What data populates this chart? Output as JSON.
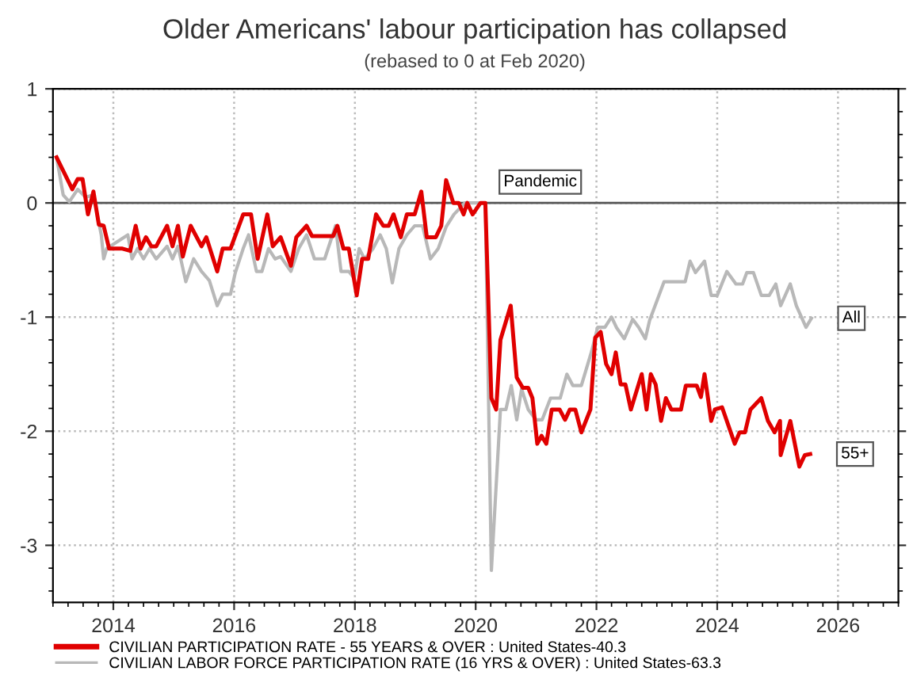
{
  "chart_data": {
    "type": "line",
    "title": "Older Americans' labour participation has collapsed",
    "subtitle": "(rebased to 0 at Feb 2020)",
    "xlim": [
      2013.0,
      2027.0
    ],
    "xticks": [
      2014,
      2016,
      2018,
      2020,
      2022,
      2024,
      2026
    ],
    "ylim": [
      -3.5,
      1
    ],
    "yticks": [
      -3,
      -2,
      -1,
      0,
      1
    ],
    "grid": true,
    "legend": "bottom",
    "marker": "none",
    "line_style": "solid",
    "ref_lines": [
      {
        "axis": "y",
        "value": 0,
        "label": null,
        "color": "#555555"
      }
    ],
    "annotations": [
      {
        "text": "Pandemic",
        "x": 2020.17,
        "y": 0
      },
      {
        "text": "All",
        "x": 2025.56,
        "y": -1.01
      },
      {
        "text": "55+",
        "x": 2025.54,
        "y": -2.2
      }
    ],
    "series": [
      {
        "name": "CIVILIAN PARTICIPATION RATE - 55 YEARS & OVER : United States-40.3",
        "color": "#e00000",
        "x": [
          2013.06,
          2013.32,
          2013.41,
          2013.49,
          2013.58,
          2013.67,
          2013.76,
          2013.84,
          2013.93,
          2014.15,
          2014.28,
          2014.37,
          2014.45,
          2014.54,
          2014.63,
          2014.71,
          2014.89,
          2014.98,
          2015.07,
          2015.15,
          2015.28,
          2015.46,
          2015.54,
          2015.72,
          2015.81,
          2015.94,
          2016.15,
          2016.28,
          2016.39,
          2016.55,
          2016.64,
          2016.77,
          2016.94,
          2017.03,
          2017.2,
          2017.29,
          2017.64,
          2017.71,
          2017.81,
          2017.9,
          2018.03,
          2018.12,
          2018.22,
          2018.35,
          2018.47,
          2018.56,
          2018.64,
          2018.76,
          2018.86,
          2018.99,
          2019.1,
          2019.19,
          2019.34,
          2019.43,
          2019.51,
          2019.63,
          2019.72,
          2019.8,
          2019.86,
          2019.95,
          2020.08,
          2020.16,
          2020.26,
          2020.34,
          2020.41,
          2020.58,
          2020.68,
          2020.78,
          2020.87,
          2020.94,
          2021.02,
          2021.09,
          2021.17,
          2021.26,
          2021.39,
          2021.48,
          2021.56,
          2021.65,
          2021.75,
          2021.9,
          2021.98,
          2022.07,
          2022.16,
          2022.25,
          2022.32,
          2022.4,
          2022.48,
          2022.57,
          2022.75,
          2022.83,
          2022.9,
          2022.98,
          2023.07,
          2023.15,
          2023.24,
          2023.4,
          2023.48,
          2023.66,
          2023.73,
          2023.79,
          2023.9,
          2023.96,
          2024.08,
          2024.29,
          2024.37,
          2024.46,
          2024.55,
          2024.73,
          2024.84,
          2024.95,
          2025.04,
          2025.05,
          2025.21,
          2025.36,
          2025.45,
          2025.54
        ],
        "values": [
          0.4,
          0.12,
          0.21,
          0.21,
          -0.1,
          0.1,
          -0.19,
          -0.2,
          -0.4,
          -0.4,
          -0.42,
          -0.2,
          -0.4,
          -0.3,
          -0.38,
          -0.38,
          -0.2,
          -0.38,
          -0.2,
          -0.47,
          -0.2,
          -0.38,
          -0.3,
          -0.6,
          -0.4,
          -0.4,
          -0.1,
          -0.1,
          -0.49,
          -0.1,
          -0.38,
          -0.3,
          -0.55,
          -0.3,
          -0.2,
          -0.29,
          -0.29,
          -0.2,
          -0.4,
          -0.4,
          -0.81,
          -0.49,
          -0.49,
          -0.1,
          -0.2,
          -0.2,
          -0.1,
          -0.3,
          -0.1,
          -0.1,
          0.1,
          -0.3,
          -0.3,
          -0.2,
          0.2,
          0.0,
          0.0,
          -0.1,
          0.0,
          -0.1,
          0.0,
          0.0,
          -1.71,
          -1.81,
          -1.2,
          -0.9,
          -1.53,
          -1.62,
          -1.62,
          -1.71,
          -2.11,
          -2.04,
          -2.11,
          -1.81,
          -1.81,
          -1.9,
          -1.81,
          -1.81,
          -2.01,
          -1.81,
          -1.18,
          -1.13,
          -1.41,
          -1.5,
          -1.31,
          -1.59,
          -1.59,
          -1.81,
          -1.5,
          -1.81,
          -1.5,
          -1.59,
          -1.91,
          -1.71,
          -1.81,
          -1.81,
          -1.6,
          -1.6,
          -1.7,
          -1.5,
          -1.91,
          -1.81,
          -1.79,
          -2.11,
          -2.01,
          -2.01,
          -1.81,
          -1.71,
          -1.91,
          -2.01,
          -1.91,
          -2.21,
          -1.91,
          -2.31,
          -2.21,
          -2.2
        ]
      },
      {
        "name": "CIVILIAN LABOR FORCE PARTICIPATION RATE (16 YRS & OVER) : United States-63.3",
        "color": "#b8b8b8",
        "x": [
          2013.06,
          2013.17,
          2013.27,
          2013.41,
          2013.54,
          2013.67,
          2013.8,
          2013.84,
          2013.89,
          2014.24,
          2014.31,
          2014.4,
          2014.5,
          2014.6,
          2014.71,
          2014.89,
          2014.98,
          2015.07,
          2015.2,
          2015.33,
          2015.46,
          2015.59,
          2015.72,
          2015.81,
          2015.94,
          2016.02,
          2016.15,
          2016.24,
          2016.37,
          2016.46,
          2016.57,
          2016.68,
          2016.77,
          2016.94,
          2017.07,
          2017.2,
          2017.33,
          2017.5,
          2017.68,
          2017.77,
          2017.9,
          2017.99,
          2018.07,
          2018.16,
          2018.3,
          2018.42,
          2018.52,
          2018.62,
          2018.73,
          2018.86,
          2018.99,
          2019.12,
          2019.25,
          2019.38,
          2019.51,
          2019.64,
          2019.82,
          2019.95,
          2020.08,
          2020.16,
          2020.26,
          2020.41,
          2020.5,
          2020.59,
          2020.68,
          2020.76,
          2020.87,
          2021.0,
          2021.1,
          2021.24,
          2021.4,
          2021.51,
          2021.61,
          2021.75,
          2021.92,
          2022.02,
          2022.14,
          2022.25,
          2022.33,
          2022.46,
          2022.6,
          2022.7,
          2022.81,
          2022.88,
          2023.12,
          2023.47,
          2023.55,
          2023.64,
          2023.79,
          2023.9,
          2024.0,
          2024.16,
          2024.31,
          2024.42,
          2024.49,
          2024.6,
          2024.73,
          2024.86,
          2024.97,
          2025.05,
          2025.21,
          2025.31,
          2025.47,
          2025.56
        ],
        "values": [
          0.4,
          0.07,
          0.01,
          0.12,
          0.05,
          0.07,
          -0.28,
          -0.49,
          -0.4,
          -0.28,
          -0.49,
          -0.4,
          -0.49,
          -0.4,
          -0.49,
          -0.38,
          -0.49,
          -0.38,
          -0.69,
          -0.49,
          -0.6,
          -0.68,
          -0.9,
          -0.8,
          -0.8,
          -0.61,
          -0.4,
          -0.28,
          -0.6,
          -0.6,
          -0.4,
          -0.49,
          -0.47,
          -0.6,
          -0.4,
          -0.28,
          -0.49,
          -0.49,
          -0.2,
          -0.6,
          -0.6,
          -0.66,
          -0.4,
          -0.49,
          -0.4,
          -0.28,
          -0.4,
          -0.7,
          -0.4,
          -0.28,
          -0.2,
          -0.2,
          -0.49,
          -0.4,
          -0.21,
          -0.1,
          0.0,
          0.0,
          0.0,
          0.0,
          -3.22,
          -1.81,
          -1.81,
          -1.6,
          -1.9,
          -1.63,
          -1.81,
          -1.9,
          -1.9,
          -1.71,
          -1.71,
          -1.5,
          -1.6,
          -1.6,
          -1.3,
          -1.09,
          -1.09,
          -1.0,
          -1.09,
          -1.19,
          -1.02,
          -1.09,
          -1.19,
          -1.03,
          -0.69,
          -0.69,
          -0.51,
          -0.61,
          -0.51,
          -0.81,
          -0.81,
          -0.6,
          -0.71,
          -0.71,
          -0.61,
          -0.61,
          -0.81,
          -0.81,
          -0.71,
          -0.9,
          -0.71,
          -0.9,
          -1.09,
          -1.01
        ]
      }
    ]
  }
}
